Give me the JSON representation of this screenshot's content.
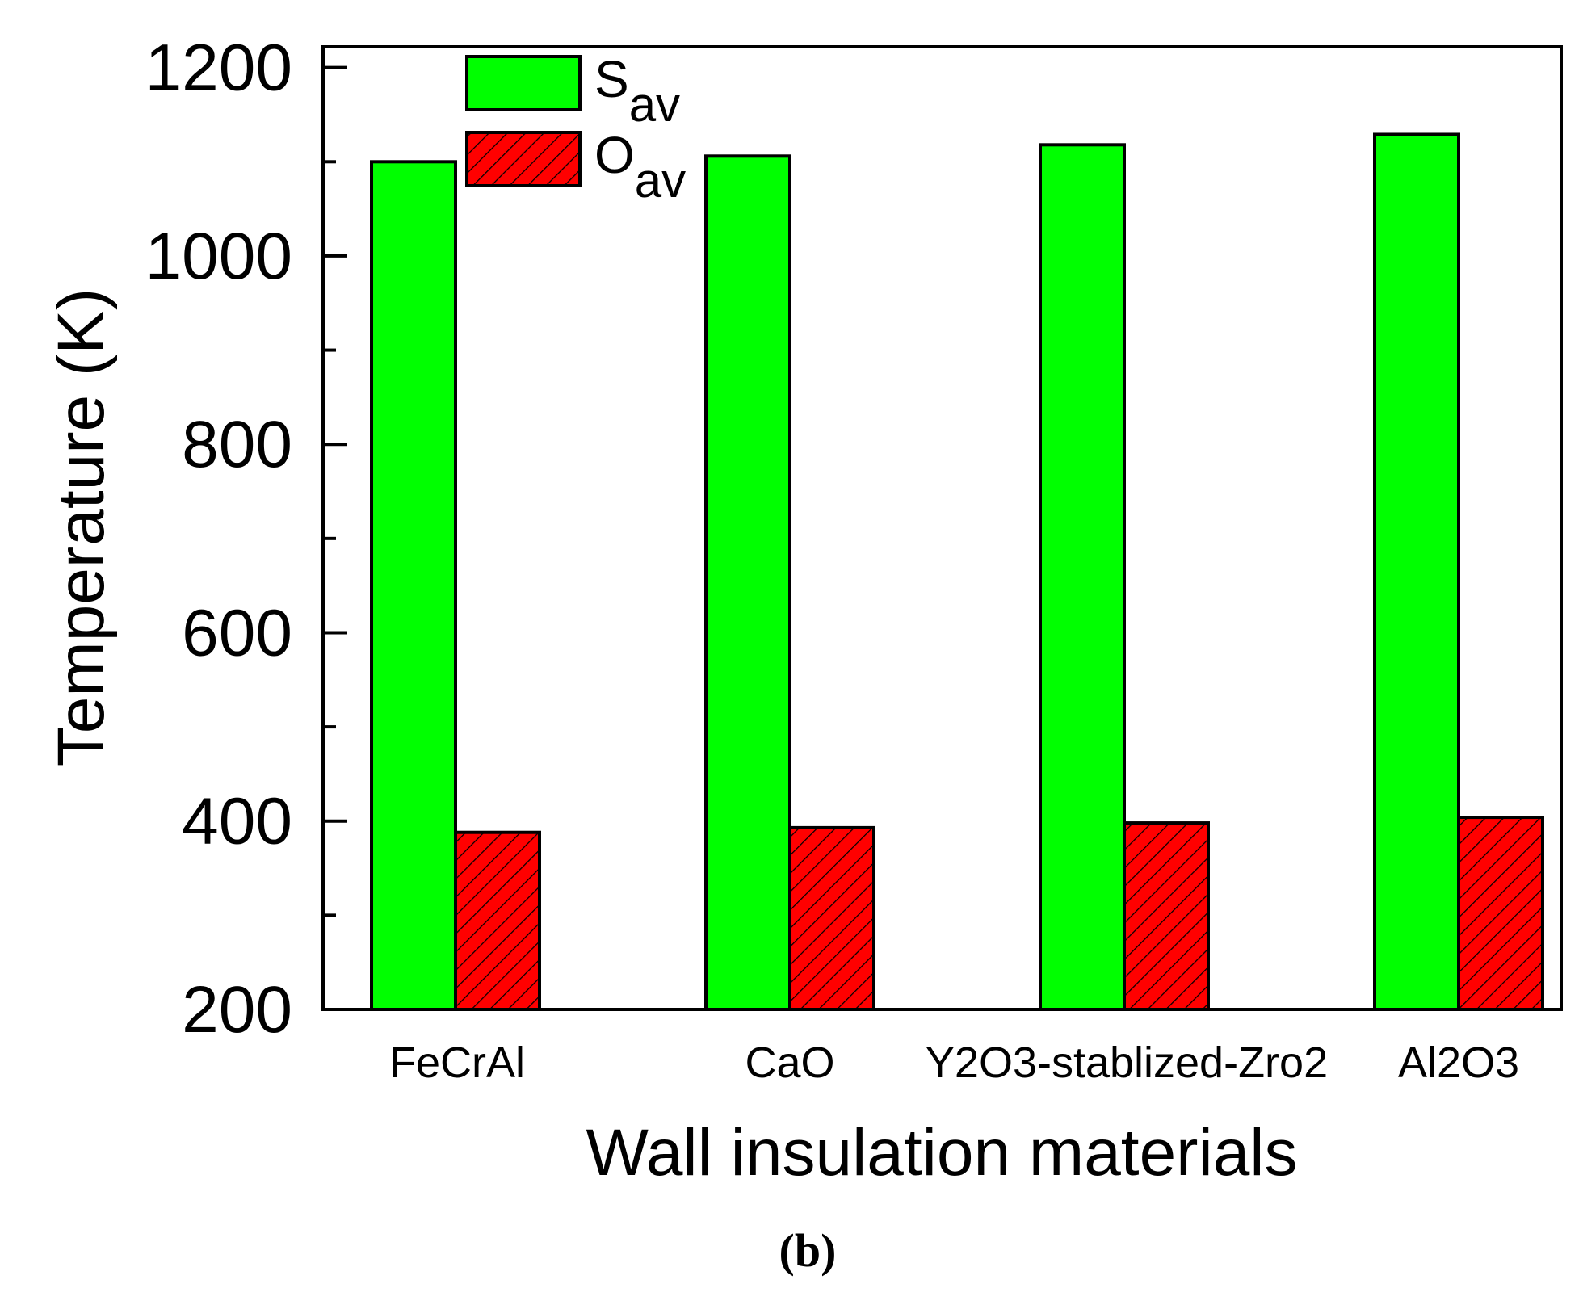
{
  "chart_data": {
    "type": "bar",
    "title": "",
    "xlabel": "Wall insulation materials",
    "ylabel": "Temperature (K)",
    "categories": [
      "FeCrAl",
      "CaO",
      "Y2O3-stablized-Zro2",
      "Al2O3"
    ],
    "series": [
      {
        "name": "S",
        "subscript": "av",
        "values": [
          1100,
          1106,
          1118,
          1129
        ],
        "color": "#00ff00",
        "pattern": "solid"
      },
      {
        "name": "O",
        "subscript": "av",
        "values": [
          388,
          393,
          398,
          404
        ],
        "color": "#ff0000",
        "pattern": "hatch"
      }
    ],
    "ylim": [
      200,
      1222
    ],
    "yticks": [
      200,
      400,
      600,
      800,
      1000,
      1200
    ],
    "legend_position": "top-left",
    "grid": false,
    "panel_label": "(b)"
  }
}
